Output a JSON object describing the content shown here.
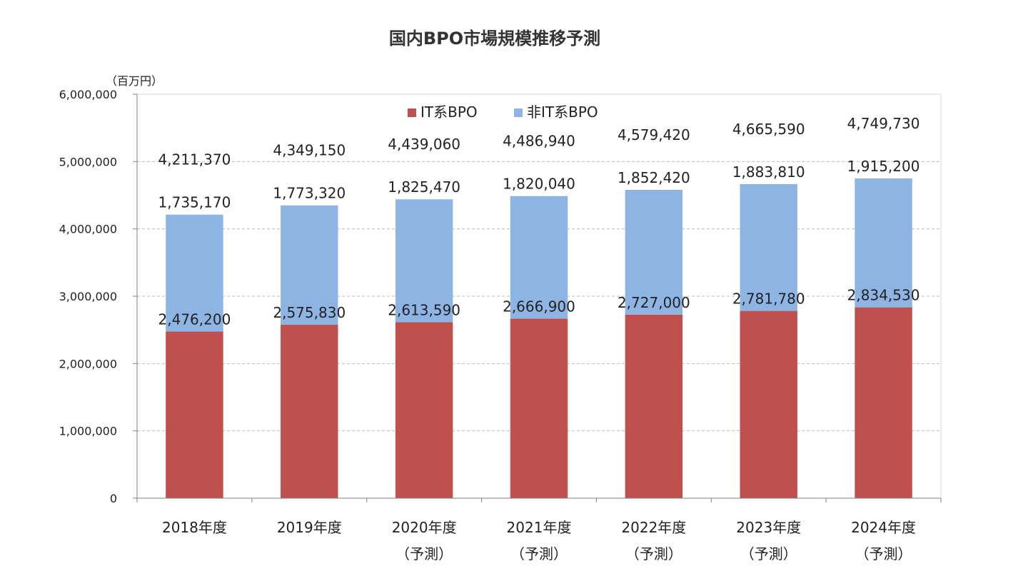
{
  "chart_data": {
    "type": "bar",
    "stacked": true,
    "title": "国内BPO市場規模推移予測",
    "ylabel": "（百万円）",
    "xlabel": "",
    "ylim": [
      0,
      6000000
    ],
    "y_ticks": [
      "0",
      "1,000,000",
      "2,000,000",
      "3,000,000",
      "4,000,000",
      "5,000,000",
      "6,000,000"
    ],
    "categories": [
      "2018年度",
      "2019年度",
      "2020年度",
      "2021年度",
      "2022年度",
      "2023年度",
      "2024年度"
    ],
    "category_sublabels": [
      "",
      "",
      "（予測）",
      "（予測）",
      "（予測）",
      "（予測）",
      "（予測）"
    ],
    "series": [
      {
        "name": "IT系BPO",
        "color": "#c0504d",
        "values": [
          2476200,
          2575830,
          2613590,
          2666900,
          2727000,
          2781780,
          2834530
        ],
        "labels": [
          "2,476,200",
          "2,575,830",
          "2,613,590",
          "2,666,900",
          "2,727,000",
          "2,781,780",
          "2,834,530"
        ]
      },
      {
        "name": "非IT系BPO",
        "color": "#8eb4e3",
        "values": [
          1735170,
          1773320,
          1825470,
          1820040,
          1852420,
          1883810,
          1915200
        ],
        "labels": [
          "1,735,170",
          "1,773,320",
          "1,825,470",
          "1,820,040",
          "1,852,420",
          "1,883,810",
          "1,915,200"
        ]
      }
    ],
    "totals": [
      "4,211,370",
      "4,349,150",
      "4,439,060",
      "4,486,940",
      "4,579,420",
      "4,665,590",
      "4,749,730"
    ],
    "legend_position": "top-center",
    "grid": true
  }
}
